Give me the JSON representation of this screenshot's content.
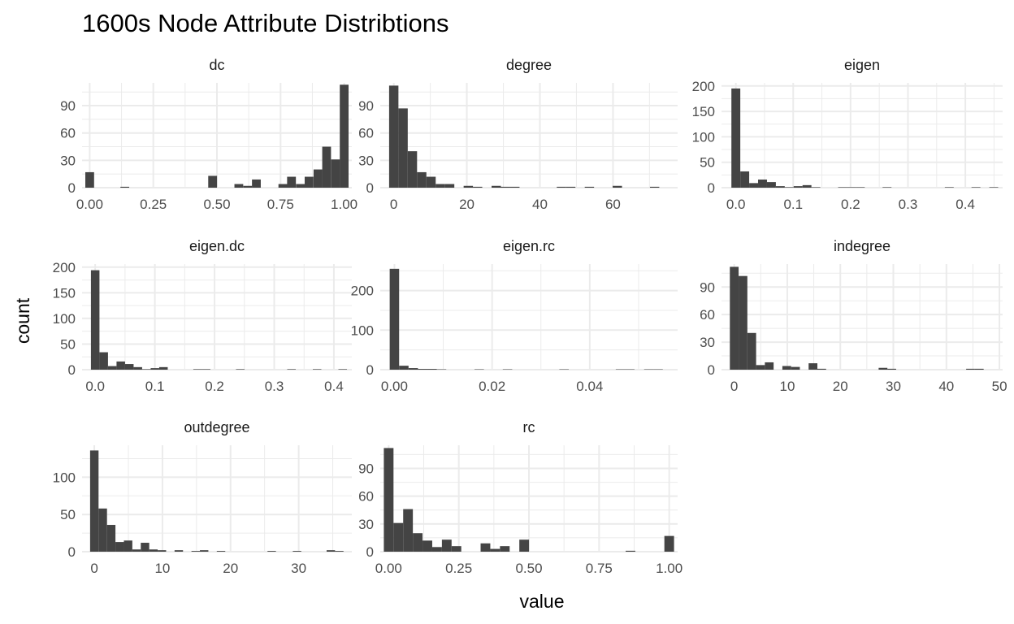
{
  "chart_data": {
    "type": "histogram",
    "title": "1600s Node Attribute Distribtions",
    "xlabel": "value",
    "ylabel": "count",
    "layout": "facet_wrap 3 columns",
    "bar_color": "#444444",
    "grid_color": "#ebebeb",
    "background": "#ffffff",
    "facets": [
      {
        "name": "dc",
        "xlim": [
          -0.03,
          1.03
        ],
        "ylim": [
          0,
          115
        ],
        "x_ticks": [
          0,
          0.25,
          0.5,
          0.75,
          1.0
        ],
        "x_tick_labels": [
          "0.00",
          "0.25",
          "0.50",
          "0.75",
          "1.00"
        ],
        "y_ticks": [
          0,
          30,
          60,
          90
        ],
        "y_tick_labels": [
          "0",
          "30",
          "60",
          "90"
        ],
        "bin_width": 0.0345,
        "bins": [
          {
            "x": 0.0,
            "count": 17
          },
          {
            "x": 0.138,
            "count": 1
          },
          {
            "x": 0.483,
            "count": 13
          },
          {
            "x": 0.586,
            "count": 4
          },
          {
            "x": 0.621,
            "count": 2
          },
          {
            "x": 0.655,
            "count": 9
          },
          {
            "x": 0.759,
            "count": 4
          },
          {
            "x": 0.793,
            "count": 12
          },
          {
            "x": 0.828,
            "count": 4
          },
          {
            "x": 0.862,
            "count": 12
          },
          {
            "x": 0.897,
            "count": 20
          },
          {
            "x": 0.931,
            "count": 45
          },
          {
            "x": 0.966,
            "count": 31
          },
          {
            "x": 1.0,
            "count": 113
          }
        ]
      },
      {
        "name": "degree",
        "xlim": [
          -3.7,
          77.7
        ],
        "ylim": [
          0,
          115
        ],
        "x_ticks": [
          0,
          20,
          40,
          60
        ],
        "x_tick_labels": [
          "0",
          "20",
          "40",
          "60"
        ],
        "y_ticks": [
          0,
          30,
          60,
          90
        ],
        "y_tick_labels": [
          "0",
          "30",
          "60",
          "90"
        ],
        "bin_width": 2.55,
        "bins": [
          {
            "x": 0.0,
            "count": 112
          },
          {
            "x": 2.55,
            "count": 87
          },
          {
            "x": 5.1,
            "count": 40
          },
          {
            "x": 7.65,
            "count": 17
          },
          {
            "x": 10.2,
            "count": 12
          },
          {
            "x": 12.75,
            "count": 4
          },
          {
            "x": 15.3,
            "count": 4
          },
          {
            "x": 20.4,
            "count": 2
          },
          {
            "x": 22.95,
            "count": 1
          },
          {
            "x": 28.05,
            "count": 2
          },
          {
            "x": 30.6,
            "count": 1
          },
          {
            "x": 33.15,
            "count": 1
          },
          {
            "x": 45.9,
            "count": 1
          },
          {
            "x": 48.45,
            "count": 1
          },
          {
            "x": 53.55,
            "count": 1
          },
          {
            "x": 61.2,
            "count": 2
          },
          {
            "x": 71.4,
            "count": 1
          }
        ]
      },
      {
        "name": "eigen",
        "xlim": [
          -0.025,
          0.465
        ],
        "ylim": [
          0,
          206
        ],
        "x_ticks": [
          0,
          0.1,
          0.2,
          0.3,
          0.4
        ],
        "x_tick_labels": [
          "0.0",
          "0.1",
          "0.2",
          "0.3",
          "0.4"
        ],
        "y_ticks": [
          0,
          50,
          100,
          150,
          200
        ],
        "y_tick_labels": [
          "0",
          "50",
          "100",
          "150",
          "200"
        ],
        "bin_width": 0.0155,
        "bins": [
          {
            "x": 0.0,
            "count": 195
          },
          {
            "x": 0.0155,
            "count": 32
          },
          {
            "x": 0.031,
            "count": 9
          },
          {
            "x": 0.0465,
            "count": 16
          },
          {
            "x": 0.062,
            "count": 11
          },
          {
            "x": 0.0775,
            "count": 3
          },
          {
            "x": 0.093,
            "count": 1
          },
          {
            "x": 0.1085,
            "count": 3
          },
          {
            "x": 0.124,
            "count": 5
          },
          {
            "x": 0.1395,
            "count": 1
          },
          {
            "x": 0.186,
            "count": 1
          },
          {
            "x": 0.2015,
            "count": 1
          },
          {
            "x": 0.217,
            "count": 1
          },
          {
            "x": 0.2635,
            "count": 1
          },
          {
            "x": 0.372,
            "count": 1
          },
          {
            "x": 0.4185,
            "count": 1
          },
          {
            "x": 0.4495,
            "count": 1
          }
        ]
      },
      {
        "name": "eigen.dc",
        "xlim": [
          -0.022,
          0.43
        ],
        "ylim": [
          0,
          206
        ],
        "x_ticks": [
          0,
          0.1,
          0.2,
          0.3,
          0.4
        ],
        "x_tick_labels": [
          "0.0",
          "0.1",
          "0.2",
          "0.3",
          "0.4"
        ],
        "y_ticks": [
          0,
          50,
          100,
          150,
          200
        ],
        "y_tick_labels": [
          "0",
          "50",
          "100",
          "150",
          "200"
        ],
        "bin_width": 0.0143,
        "bins": [
          {
            "x": 0.0,
            "count": 194
          },
          {
            "x": 0.0143,
            "count": 34
          },
          {
            "x": 0.0286,
            "count": 7
          },
          {
            "x": 0.0429,
            "count": 16
          },
          {
            "x": 0.0572,
            "count": 11
          },
          {
            "x": 0.0715,
            "count": 5
          },
          {
            "x": 0.0858,
            "count": 1
          },
          {
            "x": 0.1001,
            "count": 3
          },
          {
            "x": 0.1144,
            "count": 5
          },
          {
            "x": 0.1716,
            "count": 1
          },
          {
            "x": 0.1859,
            "count": 1
          },
          {
            "x": 0.2431,
            "count": 1
          },
          {
            "x": 0.3289,
            "count": 1
          },
          {
            "x": 0.3718,
            "count": 1
          },
          {
            "x": 0.4147,
            "count": 1
          }
        ]
      },
      {
        "name": "eigen.rc",
        "xlim": [
          -0.0029,
          0.058
        ],
        "ylim": [
          0,
          267
        ],
        "x_ticks": [
          0,
          0.02,
          0.04
        ],
        "x_tick_labels": [
          "0.00",
          "0.02",
          "0.04"
        ],
        "y_ticks": [
          0,
          100,
          200
        ],
        "y_tick_labels": [
          "0",
          "100",
          "200"
        ],
        "bin_width": 0.00193,
        "bins": [
          {
            "x": 0.0,
            "count": 255
          },
          {
            "x": 0.00193,
            "count": 10
          },
          {
            "x": 0.00386,
            "count": 4
          },
          {
            "x": 0.00579,
            "count": 2
          },
          {
            "x": 0.00772,
            "count": 2
          },
          {
            "x": 0.00965,
            "count": 1
          },
          {
            "x": 0.01737,
            "count": 1
          },
          {
            "x": 0.02316,
            "count": 1
          },
          {
            "x": 0.03474,
            "count": 1
          },
          {
            "x": 0.0463,
            "count": 1
          },
          {
            "x": 0.0482,
            "count": 1
          },
          {
            "x": 0.0521,
            "count": 1
          },
          {
            "x": 0.054,
            "count": 1
          }
        ]
      },
      {
        "name": "indegree",
        "xlim": [
          -2.4,
          50.6
        ],
        "ylim": [
          0,
          115
        ],
        "x_ticks": [
          0,
          10,
          20,
          30,
          40,
          50
        ],
        "x_tick_labels": [
          "0",
          "10",
          "20",
          "30",
          "40",
          "50"
        ],
        "y_ticks": [
          0,
          30,
          60,
          90
        ],
        "y_tick_labels": [
          "0",
          "30",
          "60",
          "90"
        ],
        "bin_width": 1.65,
        "bins": [
          {
            "x": 0.0,
            "count": 112
          },
          {
            "x": 1.65,
            "count": 102
          },
          {
            "x": 3.3,
            "count": 40
          },
          {
            "x": 4.95,
            "count": 5
          },
          {
            "x": 6.6,
            "count": 8
          },
          {
            "x": 9.9,
            "count": 4
          },
          {
            "x": 11.55,
            "count": 3
          },
          {
            "x": 14.85,
            "count": 7
          },
          {
            "x": 16.5,
            "count": 1
          },
          {
            "x": 28.05,
            "count": 2
          },
          {
            "x": 29.7,
            "count": 1
          },
          {
            "x": 44.55,
            "count": 1
          },
          {
            "x": 46.2,
            "count": 1
          }
        ]
      },
      {
        "name": "outdegree",
        "xlim": [
          -1.8,
          37.8
        ],
        "ylim": [
          0,
          143
        ],
        "x_ticks": [
          0,
          10,
          20,
          30
        ],
        "x_tick_labels": [
          "0",
          "10",
          "20",
          "30"
        ],
        "y_ticks": [
          0,
          50,
          100
        ],
        "y_tick_labels": [
          "0",
          "50",
          "100"
        ],
        "bin_width": 1.24,
        "bins": [
          {
            "x": 0.0,
            "count": 136
          },
          {
            "x": 1.24,
            "count": 58
          },
          {
            "x": 2.48,
            "count": 36
          },
          {
            "x": 3.72,
            "count": 13
          },
          {
            "x": 4.96,
            "count": 15
          },
          {
            "x": 6.2,
            "count": 3
          },
          {
            "x": 7.44,
            "count": 12
          },
          {
            "x": 8.68,
            "count": 3
          },
          {
            "x": 9.92,
            "count": 2
          },
          {
            "x": 12.4,
            "count": 2
          },
          {
            "x": 14.88,
            "count": 1
          },
          {
            "x": 16.12,
            "count": 2
          },
          {
            "x": 18.6,
            "count": 1
          },
          {
            "x": 26.04,
            "count": 1
          },
          {
            "x": 29.76,
            "count": 1
          },
          {
            "x": 34.72,
            "count": 2
          },
          {
            "x": 35.96,
            "count": 1
          }
        ]
      },
      {
        "name": "rc",
        "xlim": [
          -0.03,
          1.03
        ],
        "ylim": [
          0,
          115
        ],
        "x_ticks": [
          0,
          0.25,
          0.5,
          0.75,
          1.0
        ],
        "x_tick_labels": [
          "0.00",
          "0.25",
          "0.50",
          "0.75",
          "1.00"
        ],
        "y_ticks": [
          0,
          30,
          60,
          90
        ],
        "y_tick_labels": [
          "0",
          "30",
          "60",
          "90"
        ],
        "bin_width": 0.0345,
        "bins": [
          {
            "x": 0.0,
            "count": 112
          },
          {
            "x": 0.0345,
            "count": 31
          },
          {
            "x": 0.069,
            "count": 46
          },
          {
            "x": 0.1035,
            "count": 20
          },
          {
            "x": 0.138,
            "count": 12
          },
          {
            "x": 0.1725,
            "count": 5
          },
          {
            "x": 0.207,
            "count": 13
          },
          {
            "x": 0.2415,
            "count": 6
          },
          {
            "x": 0.345,
            "count": 9
          },
          {
            "x": 0.3795,
            "count": 3
          },
          {
            "x": 0.414,
            "count": 6
          },
          {
            "x": 0.483,
            "count": 13
          },
          {
            "x": 0.862,
            "count": 1
          },
          {
            "x": 1.0,
            "count": 17
          }
        ]
      }
    ]
  }
}
